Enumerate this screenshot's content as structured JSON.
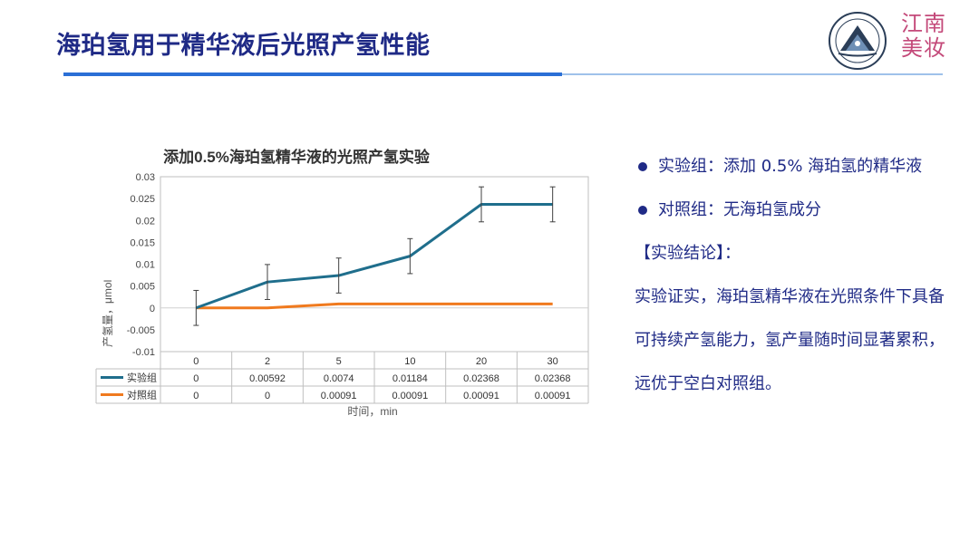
{
  "slide": {
    "title": "海珀氢用于精华液后光照产氢性能",
    "brand_line1": "江南",
    "brand_line2": "美妆"
  },
  "colors": {
    "title": "#1f2a86",
    "accent_bar": "#2a6fd6",
    "brand": "#c44a7a",
    "experimental": "#1f6e8c",
    "control": "#f07a1e"
  },
  "icons": {
    "logo": "university-emblem-icon"
  },
  "bullets": {
    "item1": "实验组：添加 0.5% 海珀氢的精华液",
    "item2": "对照组：无海珀氢成分",
    "conclusion_title": "【实验结论】：",
    "conclusion_text": "实验证实，海珀氢精华液在光照条件下具备可持续产氢能力，氢产量随时间显著累积，远优于空白对照组。"
  },
  "chart_data": {
    "type": "line",
    "title": "添加0.5%海珀氢精华液的光照产氢实验",
    "xlabel": "时间，min",
    "ylabel": "产氢量，μmol",
    "categories": [
      "0",
      "2",
      "5",
      "10",
      "20",
      "30"
    ],
    "ylim": [
      -0.01,
      0.03
    ],
    "yticks": [
      "0.03",
      "0.025",
      "0.02",
      "0.015",
      "0.01",
      "0.005",
      "0",
      "-0.005",
      "-0.01"
    ],
    "legend_placement": "data-table",
    "grid": false,
    "series": [
      {
        "name": "实验组",
        "values": [
          0,
          0.00592,
          0.0074,
          0.01184,
          0.02368,
          0.02368
        ],
        "labels": [
          "0",
          "0.00592",
          "0.0074",
          "0.01184",
          "0.02368",
          "0.02368"
        ],
        "error": [
          0.004,
          0.004,
          0.004,
          0.004,
          0.004,
          0.004
        ],
        "color": "#1f6e8c"
      },
      {
        "name": "对照组",
        "values": [
          0,
          0,
          0.00091,
          0.00091,
          0.00091,
          0.00091
        ],
        "labels": [
          "0",
          "0",
          "0.00091",
          "0.00091",
          "0.00091",
          "0.00091"
        ],
        "color": "#f07a1e"
      }
    ]
  }
}
